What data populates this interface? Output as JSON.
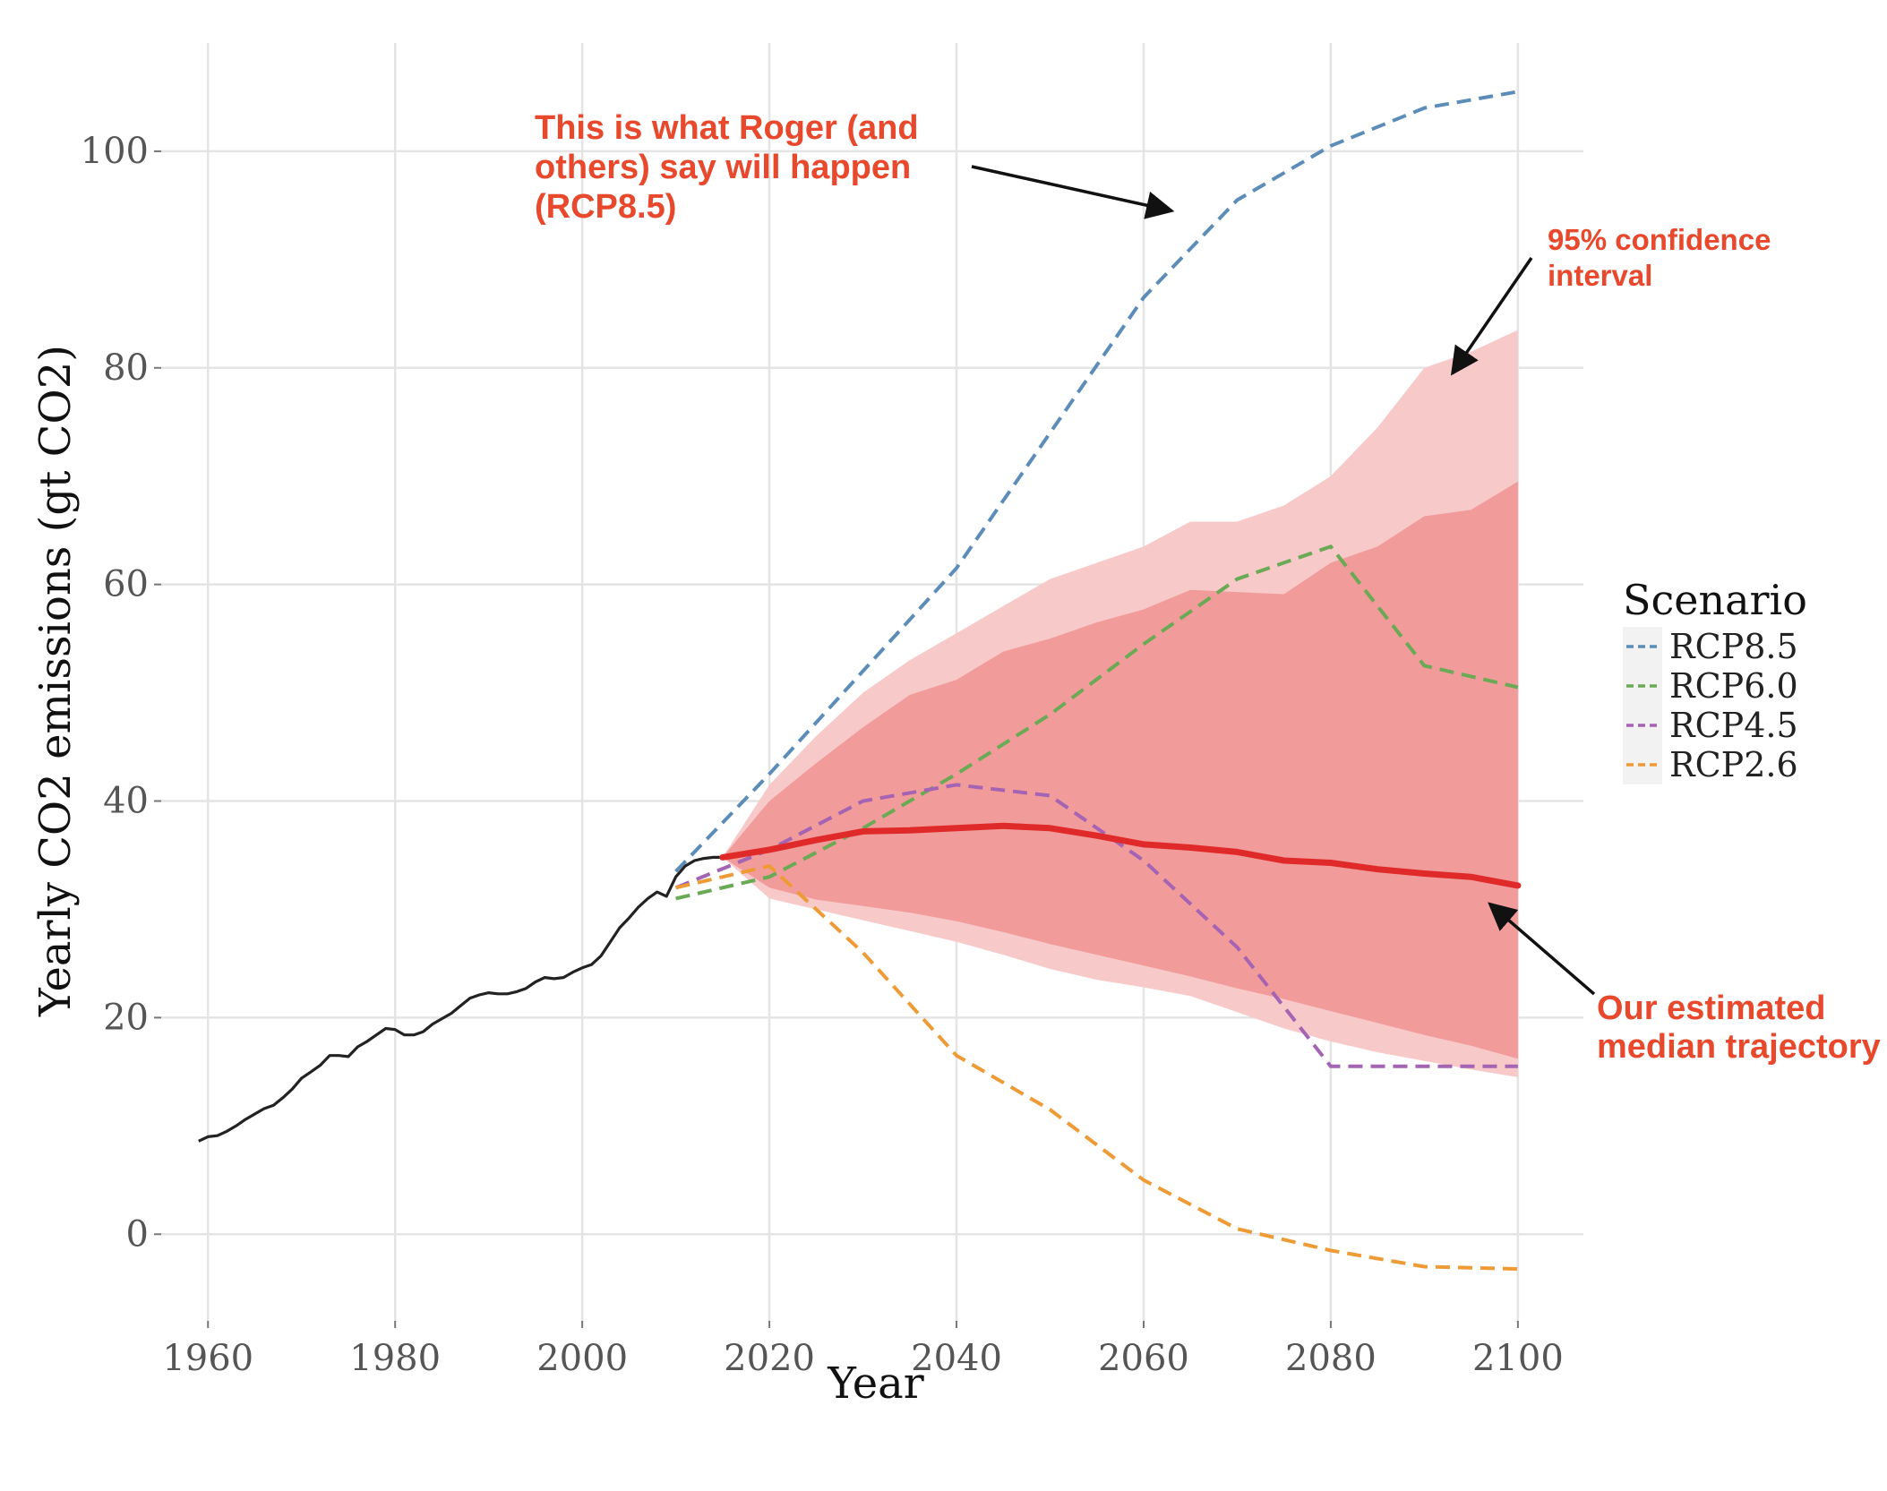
{
  "chart_data": {
    "type": "line",
    "xlabel": "Year",
    "ylabel": "Yearly CO2 emissions (gt CO2)",
    "xlim": [
      1955,
      2107
    ],
    "ylim": [
      -8,
      110
    ],
    "x_ticks": [
      1960,
      1980,
      2000,
      2020,
      2040,
      2060,
      2080,
      2100
    ],
    "y_ticks": [
      0,
      20,
      40,
      60,
      80,
      100
    ],
    "grid": true,
    "legend": {
      "title": "Scenario",
      "placement": "right",
      "entries": [
        "RCP8.5",
        "RCP6.0",
        "RCP4.5",
        "RCP2.6"
      ]
    },
    "historical": {
      "color": "#222222",
      "x": [
        1959,
        1960,
        1961,
        1962,
        1963,
        1964,
        1965,
        1966,
        1967,
        1968,
        1969,
        1970,
        1971,
        1972,
        1973,
        1974,
        1975,
        1976,
        1977,
        1978,
        1979,
        1980,
        1981,
        1982,
        1983,
        1984,
        1985,
        1986,
        1987,
        1988,
        1989,
        1990,
        1991,
        1992,
        1993,
        1994,
        1995,
        1996,
        1997,
        1998,
        1999,
        2000,
        2001,
        2002,
        2003,
        2004,
        2005,
        2006,
        2007,
        2008,
        2009,
        2010,
        2011,
        2012,
        2013,
        2014,
        2015
      ],
      "y": [
        8.6,
        9.0,
        9.1,
        9.5,
        10.0,
        10.6,
        11.1,
        11.6,
        11.9,
        12.6,
        13.4,
        14.4,
        15.0,
        15.6,
        16.5,
        16.5,
        16.4,
        17.3,
        17.8,
        18.4,
        19.0,
        18.9,
        18.4,
        18.4,
        18.7,
        19.4,
        19.9,
        20.4,
        21.1,
        21.8,
        22.1,
        22.3,
        22.2,
        22.2,
        22.4,
        22.7,
        23.3,
        23.7,
        23.6,
        23.7,
        24.2,
        24.6,
        24.9,
        25.7,
        27.0,
        28.3,
        29.2,
        30.2,
        31.0,
        31.6,
        31.2,
        33.0,
        34.0,
        34.5,
        34.7,
        34.8,
        34.8
      ]
    },
    "median": {
      "color": "#e02a2a",
      "x": [
        2015,
        2020,
        2025,
        2030,
        2035,
        2040,
        2045,
        2050,
        2055,
        2060,
        2065,
        2070,
        2075,
        2080,
        2085,
        2090,
        2095,
        2100
      ],
      "y": [
        34.8,
        35.5,
        36.4,
        37.2,
        37.3,
        37.5,
        37.7,
        37.5,
        36.8,
        36.0,
        35.7,
        35.3,
        34.5,
        34.3,
        33.7,
        33.3,
        33.0,
        32.2
      ]
    },
    "interval_95": {
      "color": "#f7c9c9",
      "x": [
        2015,
        2020,
        2025,
        2030,
        2035,
        2040,
        2045,
        2050,
        2055,
        2060,
        2065,
        2070,
        2075,
        2080,
        2085,
        2090,
        2095,
        2100
      ],
      "upper": [
        34.8,
        41.5,
        46.0,
        50.0,
        53.0,
        55.5,
        58.0,
        60.5,
        62.0,
        63.5,
        65.8,
        65.8,
        67.3,
        70.0,
        74.5,
        80.0,
        81.5,
        83.5
      ],
      "lower": [
        34.8,
        31.0,
        30.0,
        29.0,
        28.0,
        27.0,
        25.8,
        24.5,
        23.5,
        22.8,
        22.0,
        20.5,
        19.0,
        17.8,
        16.8,
        16.0,
        15.2,
        14.5
      ]
    },
    "interval_inner": {
      "color": "#f29b9b",
      "x": [
        2015,
        2020,
        2025,
        2030,
        2035,
        2040,
        2045,
        2050,
        2055,
        2060,
        2065,
        2070,
        2075,
        2080,
        2085,
        2090,
        2095,
        2100
      ],
      "upper": [
        34.8,
        40.0,
        43.5,
        46.8,
        49.8,
        51.2,
        53.8,
        55.0,
        56.5,
        57.7,
        59.5,
        59.3,
        59.1,
        62.0,
        63.5,
        66.3,
        66.9,
        69.5
      ],
      "lower": [
        34.8,
        32.0,
        30.9,
        30.3,
        29.7,
        28.9,
        27.9,
        26.8,
        25.8,
        24.8,
        23.8,
        22.7,
        21.7,
        20.6,
        19.5,
        18.4,
        17.4,
        16.2
      ]
    },
    "series": [
      {
        "name": "RCP8.5",
        "color": "#5b8db8",
        "x": [
          2010,
          2020,
          2030,
          2040,
          2050,
          2060,
          2070,
          2080,
          2090,
          2100
        ],
        "values": [
          33.5,
          42.5,
          52.0,
          61.5,
          74.0,
          86.5,
          95.5,
          100.5,
          104.0,
          105.5
        ]
      },
      {
        "name": "RCP6.0",
        "color": "#6aaa55",
        "x": [
          2010,
          2020,
          2030,
          2040,
          2050,
          2060,
          2070,
          2080,
          2090,
          2100
        ],
        "values": [
          31.0,
          33.0,
          37.5,
          42.5,
          48.0,
          54.5,
          60.5,
          63.5,
          52.5,
          50.5
        ]
      },
      {
        "name": "RCP4.5",
        "color": "#a463b3",
        "x": [
          2010,
          2020,
          2030,
          2040,
          2050,
          2060,
          2070,
          2080,
          2090,
          2100
        ],
        "values": [
          32.0,
          35.5,
          40.0,
          41.5,
          40.5,
          34.5,
          26.5,
          15.5,
          15.5,
          15.5
        ]
      },
      {
        "name": "RCP2.6",
        "color": "#ee9a35",
        "x": [
          2010,
          2020,
          2030,
          2040,
          2050,
          2060,
          2070,
          2080,
          2090,
          2100
        ],
        "values": [
          32.0,
          34.0,
          26.0,
          16.5,
          11.5,
          5.0,
          0.5,
          -1.5,
          -3.0,
          -3.2
        ]
      }
    ],
    "annotations": [
      {
        "lines": [
          "This is what Roger (and",
          "others) say will happen",
          "(RCP8.5)"
        ],
        "target_x": 2063,
        "target_y": 94.5
      },
      {
        "lines": [
          "95% confidence",
          "interval"
        ],
        "target_x": 2093,
        "target_y": 79.5
      },
      {
        "lines": [
          "Our estimated",
          "median trajectory"
        ],
        "target_x": 2097,
        "target_y": 30.5
      }
    ]
  }
}
